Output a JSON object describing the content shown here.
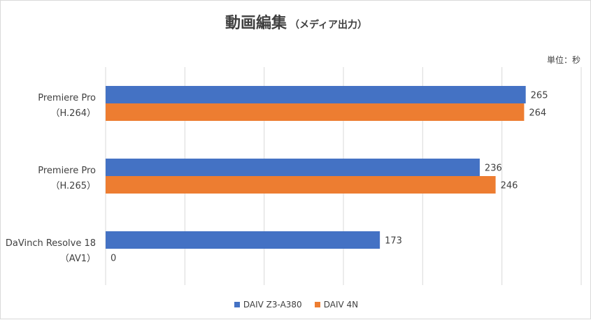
{
  "chart_data": {
    "type": "bar",
    "orientation": "horizontal",
    "title": "動画編集",
    "subtitle": "（メディア出力）",
    "unit_label": "単位：秒",
    "categories": [
      [
        "Premiere Pro",
        "（H.264）"
      ],
      [
        "Premiere Pro",
        "（H.265）"
      ],
      [
        "DaVinch Resolve 18",
        "（AV1）"
      ]
    ],
    "series": [
      {
        "name": "DAIV Z3-A380",
        "color": "#4472c4",
        "values": [
          265,
          236,
          173
        ]
      },
      {
        "name": "DAIV 4N",
        "color": "#ed7d31",
        "values": [
          264,
          246,
          0
        ]
      }
    ],
    "xlim": [
      0,
      300
    ],
    "grid": true,
    "legend_position": "bottom"
  }
}
